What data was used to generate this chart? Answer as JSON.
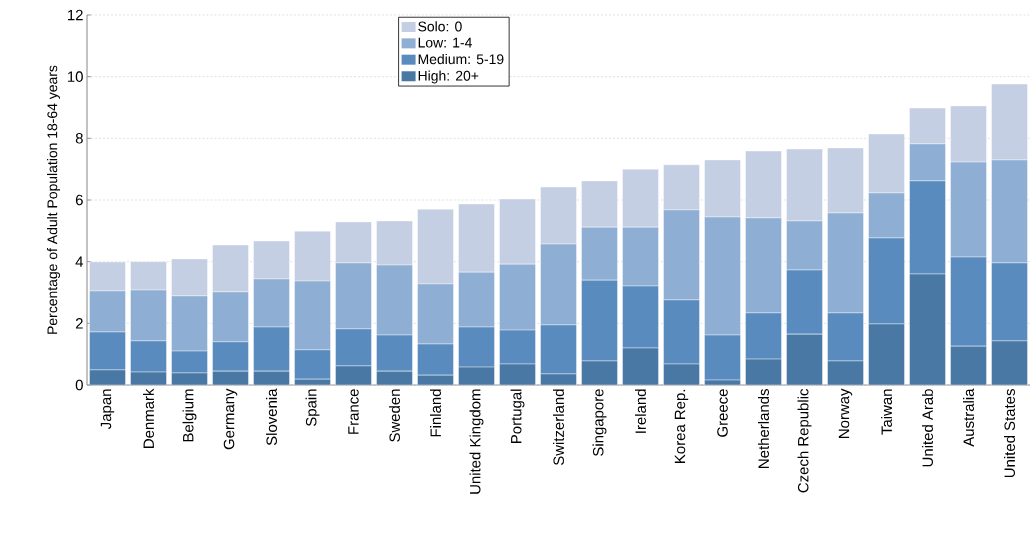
{
  "chart_data": {
    "type": "bar",
    "stacked": true,
    "ylabel": "Percentage of Adult Population 18-64 years",
    "categories": [
      "Japan",
      "Denmark",
      "Belgium",
      "Germany",
      "Slovenia",
      "Spain",
      "France",
      "Sweden",
      "Finland",
      "United Kingdom",
      "Portugal",
      "Switzerland",
      "Singapore",
      "Ireland",
      "Korea Rep.",
      "Greece",
      "Netherlands",
      "Czech Republic",
      "Norway",
      "Taiwan",
      "United Arab",
      "Australia",
      "United States"
    ],
    "series": [
      {
        "name": "High: 20+",
        "color": "#4a78a5",
        "values": [
          0.49,
          0.42,
          0.39,
          0.45,
          0.45,
          0.19,
          0.62,
          0.45,
          0.32,
          0.58,
          0.68,
          0.36,
          0.78,
          1.2,
          0.68,
          0.16,
          0.84,
          1.65,
          0.78,
          1.98,
          3.6,
          1.26,
          1.43
        ]
      },
      {
        "name": "Medium: 5-19",
        "color": "#5a8bbf",
        "values": [
          1.23,
          1.01,
          0.71,
          0.95,
          1.43,
          0.95,
          1.2,
          1.17,
          1.01,
          1.3,
          1.1,
          1.59,
          2.62,
          2.01,
          2.08,
          1.46,
          1.5,
          2.08,
          1.56,
          2.79,
          3.02,
          2.89,
          2.53
        ]
      },
      {
        "name": "Low: 1-4",
        "color": "#8faed3",
        "values": [
          1.33,
          1.65,
          1.79,
          1.62,
          1.56,
          2.23,
          2.14,
          2.27,
          1.95,
          1.78,
          2.14,
          2.62,
          1.72,
          1.91,
          2.92,
          3.83,
          3.08,
          1.59,
          3.24,
          1.46,
          1.2,
          3.08,
          3.34
        ]
      },
      {
        "name": "Solo: 0",
        "color": "#c4cfe3",
        "values": [
          0.94,
          0.92,
          1.2,
          1.52,
          1.23,
          1.62,
          1.33,
          1.43,
          2.42,
          2.21,
          2.11,
          1.85,
          1.5,
          1.88,
          1.46,
          1.85,
          2.17,
          2.33,
          2.11,
          1.91,
          1.16,
          1.82,
          2.46
        ]
      }
    ],
    "ylim": [
      0,
      12
    ],
    "yticks": [
      0,
      2,
      4,
      6,
      8,
      10,
      12
    ],
    "grid": "y",
    "legend": "top"
  }
}
